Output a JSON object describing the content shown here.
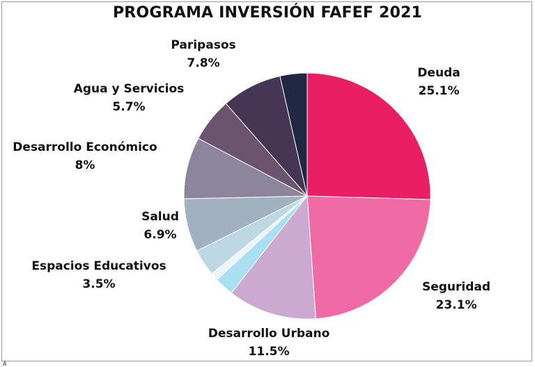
{
  "chart_data": {
    "type": "pie",
    "title": "PROGRAMA INVERSIÓN FAFEF 2021",
    "start": "top",
    "direction": "clockwise",
    "slices": [
      {
        "label": "Deuda",
        "display": "25.1%",
        "value": 25.1,
        "color": "#e91e63"
      },
      {
        "label": "Seguridad",
        "display": "23.1%",
        "value": 23.1,
        "color": "#f06aa5"
      },
      {
        "label": "Desarrollo Urbano",
        "display": "11.5%",
        "value": 11.5,
        "color": "#cba9d1"
      },
      {
        "label": "",
        "display": "",
        "value": 2.5,
        "color": "#a9dff3"
      },
      {
        "label": "",
        "display": "",
        "value": 1.0,
        "color": "#e9f5fb"
      },
      {
        "label": "Espacios Educativos",
        "display": "3.5%",
        "value": 3.5,
        "color": "#bed7e4"
      },
      {
        "label": "Salud",
        "display": "6.9%",
        "value": 6.9,
        "color": "#a2b1c2"
      },
      {
        "label": "Desarrollo Económico",
        "display": "8%",
        "value": 8.0,
        "color": "#8c849c"
      },
      {
        "label": "Agua y Servicios",
        "display": "5.7%",
        "value": 5.7,
        "color": "#6b5470"
      },
      {
        "label": "Paripasos",
        "display": "7.8%",
        "value": 7.8,
        "color": "#463555"
      },
      {
        "label": "",
        "display": "",
        "value": 3.5,
        "color": "#222744"
      }
    ]
  },
  "footer_mark": "Á"
}
